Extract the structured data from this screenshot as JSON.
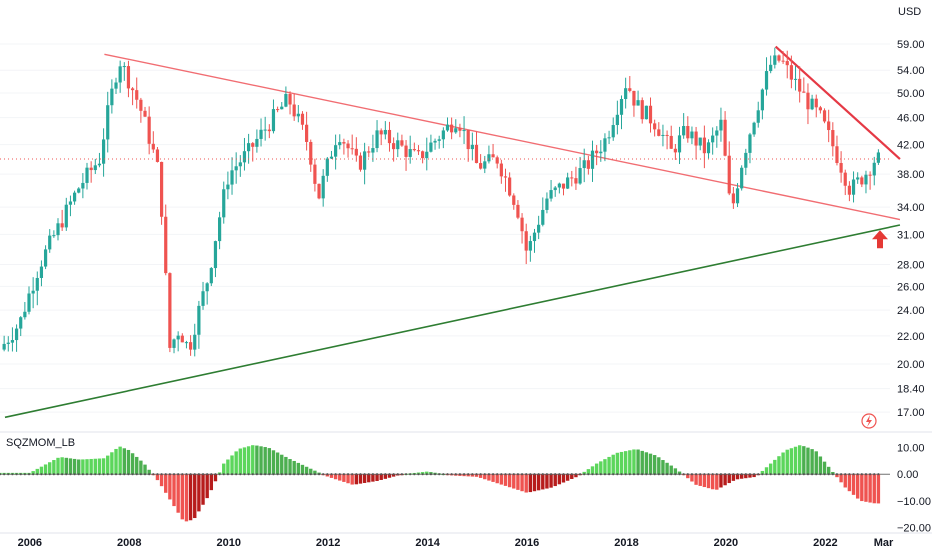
{
  "currency": "USD",
  "indicator_label": "SQZMOM_LB",
  "colors": {
    "up": "#26a69a",
    "down": "#ef5350",
    "resistance": "#f16d72",
    "support": "#2e7d32",
    "downtrend": "#e53945",
    "mom_bright_green": "#5cd65c",
    "mom_dark_green": "#4caf50",
    "mom_bright_red": "#ef5350",
    "mom_dark_red": "#b71c1c",
    "zero_line": "#707070",
    "arrow": "#e53935"
  },
  "chart_data": [
    {
      "type": "line",
      "panel": "price",
      "scale": "log",
      "ylim": [
        16.0,
        64.0
      ],
      "xlim": [
        2005.4,
        2023.3
      ],
      "yticks": [
        "59.00",
        "54.00",
        "50.00",
        "46.00",
        "42.00",
        "38.00",
        "34.00",
        "31.00",
        "28.00",
        "26.00",
        "24.00",
        "22.00",
        "20.00",
        "18.40",
        "17.00"
      ],
      "xticks": [
        "2006",
        "2008",
        "2010",
        "2012",
        "2014",
        "2016",
        "2018",
        "2020",
        "2022",
        "Mar"
      ],
      "current_price": 40.0,
      "x": [
        2005.4,
        2005.8,
        2006.2,
        2006.6,
        2007.0,
        2007.4,
        2007.8,
        2008.2,
        2008.6,
        2008.8,
        2009.0,
        2009.2,
        2009.6,
        2010.0,
        2010.4,
        2010.8,
        2011.2,
        2011.6,
        2011.8,
        2012.2,
        2012.6,
        2013.0,
        2013.4,
        2013.8,
        2014.2,
        2014.6,
        2015.0,
        2015.4,
        2015.8,
        2016.0,
        2016.4,
        2016.8,
        2017.2,
        2017.6,
        2018.0,
        2018.2,
        2018.6,
        2018.9,
        2019.2,
        2019.6,
        2019.9,
        2020.1,
        2020.3,
        2020.6,
        2020.9,
        2021.1,
        2021.3,
        2021.6,
        2021.9,
        2022.2,
        2022.5,
        2022.8,
        2023.0
      ],
      "series": [
        {
          "values": [
            21.0,
            23.0,
            28.0,
            32.0,
            36.5,
            40.0,
            56.0,
            48.0,
            38.0,
            21.0,
            22.5,
            21.0,
            27.0,
            38.0,
            41.0,
            45.0,
            49.0,
            42.0,
            35.0,
            44.0,
            39.0,
            43.5,
            42.0,
            40.0,
            43.0,
            46.0,
            39.0,
            40.0,
            34.0,
            29.0,
            35.0,
            37.0,
            39.0,
            43.0,
            52.0,
            48.0,
            45.0,
            41.0,
            44.0,
            41.0,
            45.0,
            33.0,
            39.0,
            47.0,
            55.0,
            56.0,
            53.0,
            49.0,
            46.0,
            41.0,
            36.0,
            38.0,
            40.0
          ]
        }
      ],
      "lines": [
        {
          "label": "resistance",
          "from": [
            2007.5,
            57.0
          ],
          "to": [
            2023.5,
            32.6
          ]
        },
        {
          "label": "support",
          "from": [
            2005.5,
            16.7
          ],
          "to": [
            2023.5,
            32.0
          ]
        },
        {
          "label": "downtrend",
          "from": [
            2021.0,
            58.5
          ],
          "to": [
            2023.5,
            40.0
          ]
        }
      ],
      "annotation": "up-arrow"
    },
    {
      "type": "bar",
      "panel": "indicator",
      "name": "SQZMOM_LB",
      "ylim": [
        -21,
        14
      ],
      "yticks": [
        "10.00",
        "0.00",
        "−10.00",
        "−20.00"
      ],
      "x": [
        2005.4,
        2006.0,
        2006.6,
        2007.0,
        2007.5,
        2007.8,
        2008.0,
        2008.3,
        2008.6,
        2008.9,
        2009.1,
        2009.3,
        2009.6,
        2009.9,
        2010.2,
        2010.5,
        2010.8,
        2011.2,
        2011.6,
        2012.0,
        2012.5,
        2013.0,
        2013.5,
        2014.0,
        2014.5,
        2015.0,
        2015.5,
        2016.0,
        2016.5,
        2017.0,
        2017.4,
        2017.8,
        2018.2,
        2018.6,
        2019.0,
        2019.4,
        2019.8,
        2020.2,
        2020.6,
        2020.9,
        2021.2,
        2021.5,
        2021.8,
        2022.1,
        2022.4,
        2022.7,
        2023.0
      ],
      "values": [
        0.5,
        0.5,
        6.5,
        5.5,
        6.0,
        10.5,
        9.0,
        4.0,
        -3.0,
        -12.0,
        -18.0,
        -17.0,
        -8.0,
        4.0,
        9.5,
        11.0,
        10.0,
        6.0,
        2.5,
        -1.0,
        -4.0,
        -2.5,
        0.0,
        1.0,
        -0.5,
        -1.0,
        -4.0,
        -7.0,
        -5.0,
        -1.0,
        4.0,
        8.0,
        9.5,
        7.0,
        2.0,
        -4.0,
        -6.0,
        -2.0,
        -1.0,
        4.0,
        9.0,
        11.0,
        9.0,
        2.0,
        -5.0,
        -10.0,
        -11.0
      ]
    }
  ]
}
